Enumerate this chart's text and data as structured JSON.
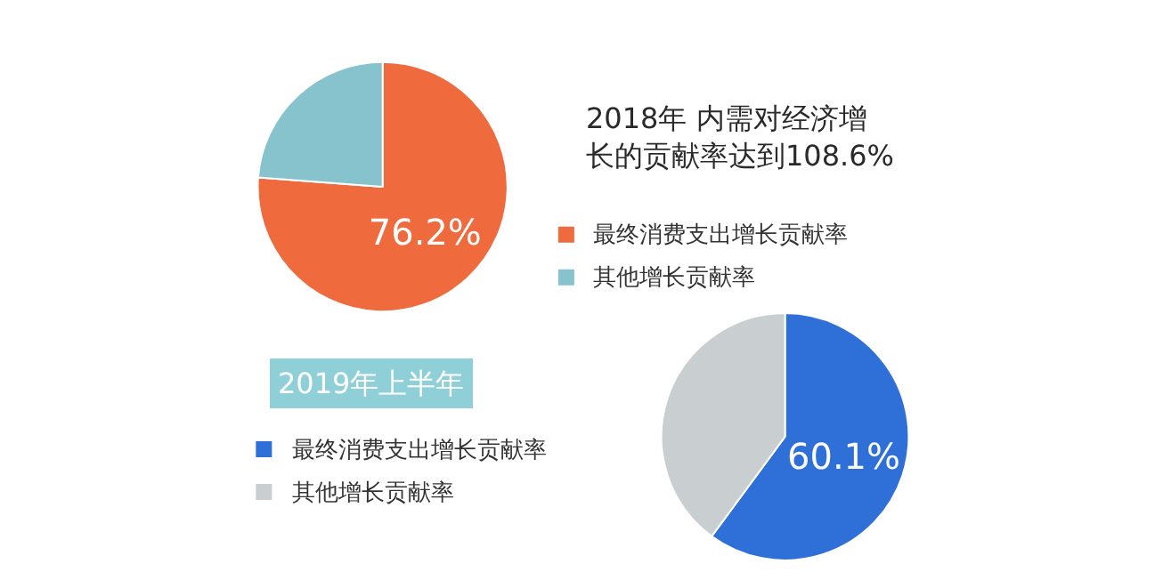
{
  "chart_data": [
    {
      "type": "pie",
      "title": "2018年 内需对经济增长的贡献率达到108.6%",
      "categories": [
        "最终消费支出增长贡献率",
        "其他增长贡献率"
      ],
      "values": [
        76.2,
        23.8
      ],
      "colors": [
        "#ef6a3c",
        "#86c3cc"
      ],
      "value_labels": [
        "76.2%",
        null
      ],
      "legend": "right"
    },
    {
      "type": "pie",
      "title": "2019年上半年",
      "categories": [
        "最终消费支出增长贡献率",
        "其他增长贡献率"
      ],
      "values": [
        60.1,
        39.9
      ],
      "colors": [
        "#2e6fd8",
        "#c9ced1"
      ],
      "value_labels": [
        "60.1%",
        null
      ],
      "legend": "left"
    }
  ]
}
